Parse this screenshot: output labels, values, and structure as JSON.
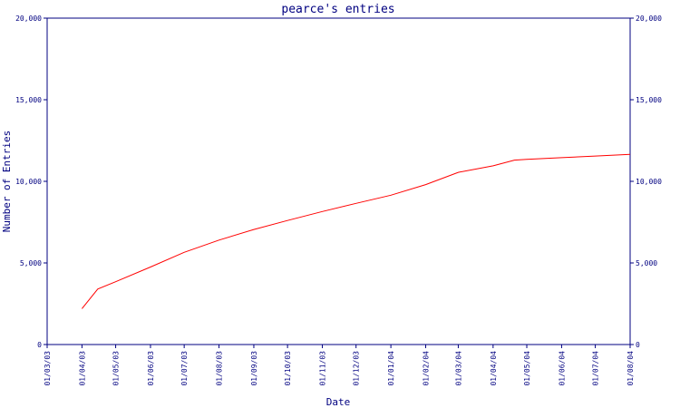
{
  "chart_data": {
    "type": "line",
    "title": "pearce's entries",
    "xlabel": "Date",
    "ylabel": "Number of Entries",
    "ylim": [
      0,
      20000
    ],
    "y_ticks": [
      "0",
      "5,000",
      "10,000",
      "15,000",
      "20,000"
    ],
    "x_ticks": [
      "01/03/03",
      "01/04/03",
      "01/05/03",
      "01/06/03",
      "01/07/03",
      "01/08/03",
      "01/09/03",
      "01/10/03",
      "01/11/03",
      "01/12/03",
      "01/01/04",
      "01/02/04",
      "01/03/04",
      "01/04/04",
      "01/05/04",
      "01/06/04",
      "01/07/04",
      "01/08/04"
    ],
    "xlim": [
      "2003-03-01",
      "2004-08-01"
    ],
    "right_axis": true,
    "grid": false,
    "series": [
      {
        "color": "#ff0000",
        "points": [
          {
            "x": "2003-04-01",
            "y": 2200
          },
          {
            "x": "2003-04-15",
            "y": 3400
          },
          {
            "x": "2003-05-01",
            "y": 3850
          },
          {
            "x": "2003-06-01",
            "y": 4750
          },
          {
            "x": "2003-07-01",
            "y": 5650
          },
          {
            "x": "2003-08-01",
            "y": 6400
          },
          {
            "x": "2003-09-01",
            "y": 7050
          },
          {
            "x": "2003-10-01",
            "y": 7600
          },
          {
            "x": "2003-11-01",
            "y": 8150
          },
          {
            "x": "2003-12-01",
            "y": 8650
          },
          {
            "x": "2004-01-01",
            "y": 9150
          },
          {
            "x": "2004-02-01",
            "y": 9800
          },
          {
            "x": "2004-03-01",
            "y": 10550
          },
          {
            "x": "2004-04-01",
            "y": 10950
          },
          {
            "x": "2004-04-20",
            "y": 11300
          },
          {
            "x": "2004-05-01",
            "y": 11350
          },
          {
            "x": "2004-06-01",
            "y": 11450
          },
          {
            "x": "2004-07-01",
            "y": 11550
          },
          {
            "x": "2004-08-01",
            "y": 11650
          }
        ]
      }
    ],
    "colors": {
      "axis": "#000080",
      "text": "#000080",
      "line": "#ff0000",
      "background": "#ffffff"
    }
  }
}
